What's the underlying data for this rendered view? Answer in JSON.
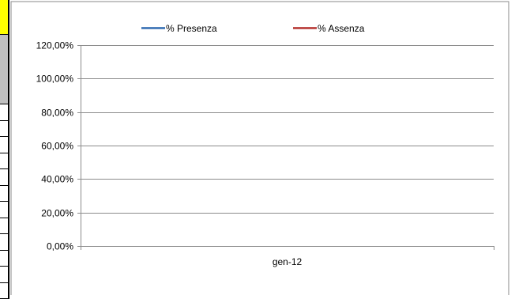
{
  "sheet": {
    "accent_color": "#ffff00",
    "header_cell_color": "#c0c0c0",
    "grid_color": "#000000"
  },
  "chart_data": {
    "type": "line",
    "title": "",
    "xlabel": "",
    "ylabel": "",
    "categories": [
      "gen-12"
    ],
    "ylim": [
      0,
      1.2
    ],
    "yticks": [
      0,
      0.2,
      0.4,
      0.6,
      0.8,
      1.0,
      1.2
    ],
    "ytick_labels": [
      "0,00%",
      "20,00%",
      "40,00%",
      "60,00%",
      "80,00%",
      "100,00%",
      "120,00%"
    ],
    "grid": true,
    "legend_position": "top",
    "series": [
      {
        "name": "% Presenza",
        "values": [
          null
        ],
        "color": "#4f81bd"
      },
      {
        "name": "% Assenza",
        "values": [
          null
        ],
        "color": "#c0504d"
      }
    ]
  }
}
